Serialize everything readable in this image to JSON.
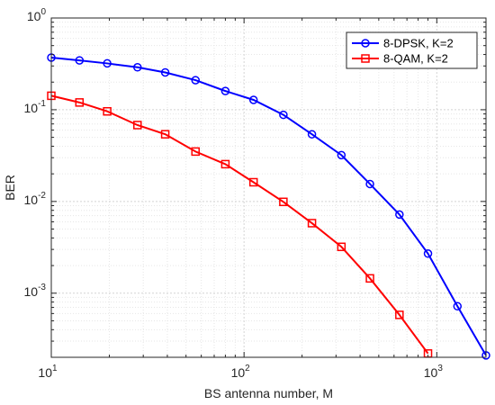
{
  "chart_data": {
    "type": "line",
    "xscale": "log",
    "yscale": "log",
    "xlim": [
      10,
      1800
    ],
    "ylim": [
      0.0002,
      1
    ],
    "xlabel": "BS antenna number, M",
    "ylabel": "BER",
    "grid": true,
    "legend_position": "top-right",
    "x_ticks": [
      {
        "value": 10,
        "base": "10",
        "exp": "1"
      },
      {
        "value": 100,
        "base": "10",
        "exp": "2"
      },
      {
        "value": 1000,
        "base": "10",
        "exp": "3"
      }
    ],
    "y_ticks": [
      {
        "value": 1,
        "base": "10",
        "exp": "0"
      },
      {
        "value": 0.1,
        "base": "10",
        "exp": "-1"
      },
      {
        "value": 0.01,
        "base": "10",
        "exp": "-2"
      },
      {
        "value": 0.001,
        "base": "10",
        "exp": "-3"
      }
    ],
    "series": [
      {
        "name": "8-DPSK, K=2",
        "color": "#0000ff",
        "marker": "circle",
        "x": [
          10,
          14,
          19.5,
          28,
          39,
          56,
          80,
          112,
          160,
          225,
          320,
          450,
          640,
          900,
          1280,
          1800
        ],
        "y": [
          0.37,
          0.345,
          0.32,
          0.29,
          0.255,
          0.21,
          0.16,
          0.128,
          0.088,
          0.054,
          0.032,
          0.0155,
          0.0072,
          0.0027,
          0.00072,
          0.00021
        ]
      },
      {
        "name": "8-QAM, K=2",
        "color": "#ff0000",
        "marker": "square",
        "x": [
          10,
          14,
          19.5,
          28,
          39,
          56,
          80,
          112,
          160,
          225,
          320,
          450,
          640,
          900
        ],
        "y": [
          0.142,
          0.12,
          0.096,
          0.068,
          0.054,
          0.035,
          0.0255,
          0.0162,
          0.0099,
          0.0058,
          0.0032,
          0.00145,
          0.00058,
          0.00022
        ]
      }
    ]
  }
}
